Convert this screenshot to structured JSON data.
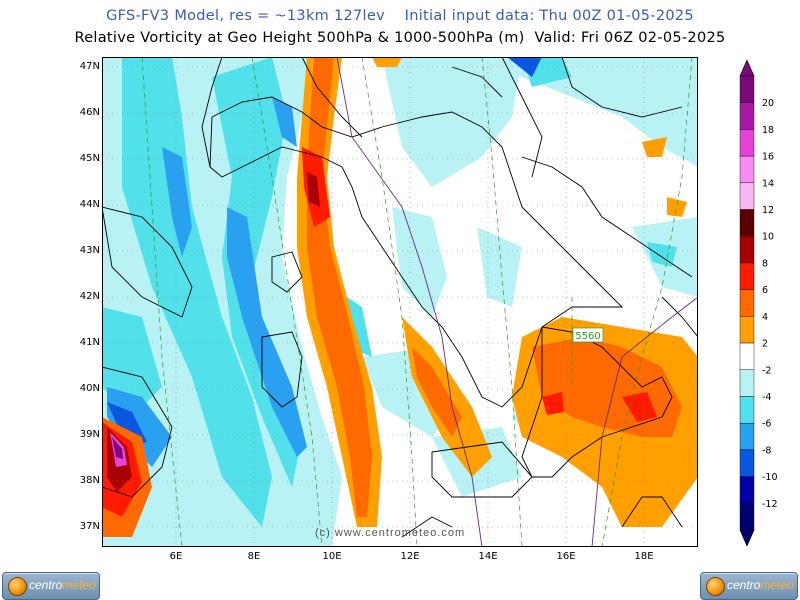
{
  "header": {
    "line1": "GFS-FV3 Model, res = ~13km 127lev    Initial input data: Thu 00Z 01-05-2025",
    "line2": "Relative Vorticity at Geo Height 500hPa & 1000-500hPa (m)  Valid: Fri 06Z 02-05-2025"
  },
  "map": {
    "lat_labels": [
      "47N",
      "46N",
      "45N",
      "44N",
      "43N",
      "42N",
      "41N",
      "40N",
      "39N",
      "38N",
      "37N"
    ],
    "lon_labels": [
      "6E",
      "8E",
      "10E",
      "12E",
      "14E",
      "16E",
      "18E"
    ],
    "contour_label": "5560",
    "watermark": "(c) www.centrometeo.com"
  },
  "colorbar": {
    "labels": [
      "20",
      "18",
      "16",
      "14",
      "12",
      "10",
      "8",
      "6",
      "4",
      "2",
      "-2",
      "-4",
      "-6",
      "-8",
      "-10",
      "-12"
    ],
    "colors": [
      "#7a0a78",
      "#a81aa6",
      "#e642d8",
      "#f58cf0",
      "#f7b6f2",
      "#5a0000",
      "#a80000",
      "#ff1a00",
      "#ff6a00",
      "#ffa000",
      "#ffffff",
      "#b8f2f4",
      "#52e0ea",
      "#2aa0f0",
      "#0a58e0",
      "#0000a8",
      "#000070"
    ]
  },
  "logos": {
    "left": {
      "prefix": "centro",
      "suffix": "meteo"
    },
    "right": {
      "prefix": "centro",
      "suffix": "meteo"
    }
  }
}
